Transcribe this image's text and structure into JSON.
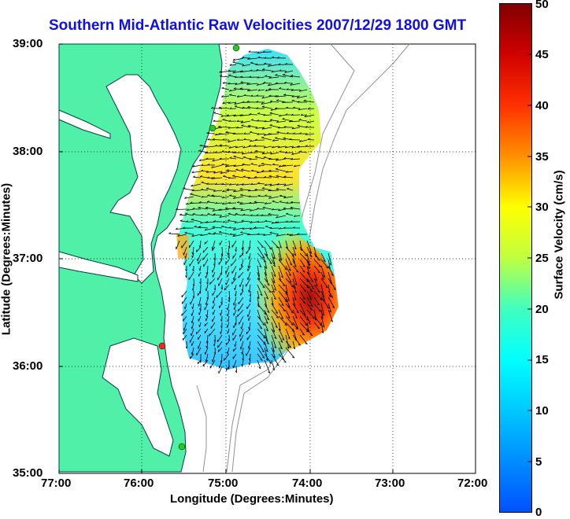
{
  "title": "Southern Mid-Atlantic Raw Velocities 2007/12/29 1800 GMT",
  "axes": {
    "xlabel": "Longitude (Degrees:Minutes)",
    "ylabel": "Latitude (Degrees:Minutes)",
    "xticks": [
      "77:00",
      "76:00",
      "75:00",
      "74:00",
      "73:00",
      "72:00"
    ],
    "yticks": [
      "39:00",
      "38:00",
      "37:00",
      "36:00",
      "35:00"
    ]
  },
  "colorbar": {
    "label": "Surface Velocity (cm/s)",
    "ticks": [
      "50",
      "45",
      "40",
      "35",
      "30",
      "25",
      "20",
      "15",
      "10",
      "5",
      "0"
    ]
  },
  "colors": {
    "land": "#50f0a8",
    "title": "#1010e0",
    "station_green": "#22cc22",
    "station_red": "#ff2020"
  }
}
